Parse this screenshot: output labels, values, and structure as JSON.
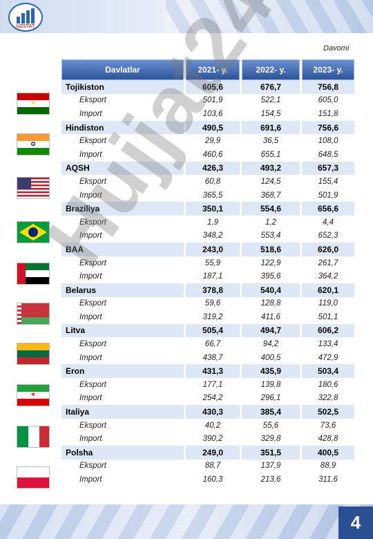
{
  "header": {
    "logo_text": "UZSTAT"
  },
  "davomi": "Davomi",
  "table": {
    "columns": [
      "Davlatlar",
      "2021- y.",
      "2022- y.",
      "2023- y."
    ],
    "countries": [
      {
        "name": "Tojikiston",
        "flag": "tajikistan-flag",
        "values": [
          "605,6",
          "676,7",
          "756,8"
        ],
        "eksport": [
          "501,9",
          "522,1",
          "605,0"
        ],
        "import": [
          "103,6",
          "154,5",
          "151,8"
        ]
      },
      {
        "name": "Hindiston",
        "flag": "india-flag",
        "values": [
          "490,5",
          "691,6",
          "756,6"
        ],
        "eksport": [
          "29,9",
          "36,5",
          "108,0"
        ],
        "import": [
          "460,6",
          "655,1",
          "648,5"
        ]
      },
      {
        "name": "AQSH",
        "flag": "usa-flag",
        "values": [
          "426,3",
          "493,2",
          "657,3"
        ],
        "eksport": [
          "60,8",
          "124,5",
          "155,4"
        ],
        "import": [
          "365,5",
          "368,7",
          "501,9"
        ]
      },
      {
        "name": "Braziliya",
        "flag": "brazil-flag",
        "values": [
          "350,1",
          "554,6",
          "656,6"
        ],
        "eksport": [
          "1,9",
          "1,2",
          "4,4"
        ],
        "import": [
          "348,2",
          "553,4",
          "652,3"
        ]
      },
      {
        "name": "BAA",
        "flag": "uae-flag",
        "values": [
          "243,0",
          "518,6",
          "626,0"
        ],
        "eksport": [
          "55,9",
          "122,9",
          "261,7"
        ],
        "import": [
          "187,1",
          "395,6",
          "364,2"
        ]
      },
      {
        "name": "Belarus",
        "flag": "belarus-flag",
        "values": [
          "378,8",
          "540,4",
          "620,1"
        ],
        "eksport": [
          "59,6",
          "128,8",
          "119,0"
        ],
        "import": [
          "319,2",
          "411,6",
          "501,1"
        ]
      },
      {
        "name": "Litva",
        "flag": "lithuania-flag",
        "values": [
          "505,4",
          "494,7",
          "606,2"
        ],
        "eksport": [
          "66,7",
          "94,2",
          "133,4"
        ],
        "import": [
          "438,7",
          "400,5",
          "472,9"
        ]
      },
      {
        "name": "Eron",
        "flag": "iran-flag",
        "values": [
          "431,3",
          "435,9",
          "503,4"
        ],
        "eksport": [
          "177,1",
          "139,8",
          "180,6"
        ],
        "import": [
          "254,2",
          "296,1",
          "322,8"
        ]
      },
      {
        "name": "Italiya",
        "flag": "italy-flag",
        "values": [
          "430,3",
          "385,4",
          "502,5"
        ],
        "eksport": [
          "40,2",
          "55,6",
          "73,6"
        ],
        "import": [
          "390,2",
          "329,8",
          "428,8"
        ]
      },
      {
        "name": "Polsha",
        "flag": "poland-flag",
        "values": [
          "249,0",
          "351,5",
          "400,5"
        ],
        "eksport": [
          "88,7",
          "137,9",
          "88,9"
        ],
        "import": [
          "160,3",
          "213,6",
          "311,6"
        ]
      }
    ],
    "sub_labels": {
      "eksport": "Eksport",
      "import": "Import"
    }
  },
  "watermark": "Hujjat24",
  "page_number": "4"
}
